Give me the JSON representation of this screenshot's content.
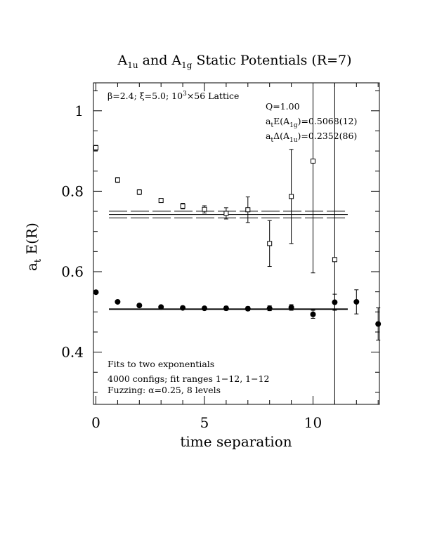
{
  "chart_data": {
    "type": "scatter",
    "title": {
      "a_text": "A",
      "sub1": "1u",
      "and_text": " and A",
      "sub2": "1g",
      "rest": " Static Potentials (R=7)"
    },
    "xlabel": "time separation",
    "ylabel": {
      "a": "a",
      "sub": "t",
      "rest": " E(R)"
    },
    "xlim": [
      0,
      13
    ],
    "ylim": [
      0.27,
      1.07
    ],
    "x_ticks": [
      0,
      5,
      10
    ],
    "x_tick_labels": [
      "0",
      "5",
      "10"
    ],
    "y_ticks": [
      0.4,
      0.6,
      0.8,
      1.0
    ],
    "y_tick_labels": [
      "0.4",
      "0.6",
      "0.8",
      "1"
    ],
    "annotations": {
      "lattice": {
        "beta": "β=2.4; ξ=5.0; 10",
        "exp": "3",
        "rest": "×56 Lattice"
      },
      "q": "Q=1.00",
      "energy_g": {
        "a": "a",
        "sub1": "t",
        "mid": "E(A",
        "sub2": "1g",
        "rest": ")=0.5068(12)"
      },
      "energy_u": {
        "a": "a",
        "sub1": "t",
        "mid": "Δ(A",
        "sub2": "1u",
        "rest": ")=0.2352(86)"
      },
      "fit_note_1": "Fits to two exponentials",
      "fit_note_2": "4000 configs; fit ranges 1−12, 1−12",
      "fit_note_3": "Fuzzing: α=0.25, 8 levels"
    },
    "series": [
      {
        "name": "A1g",
        "marker": "filled-circle",
        "points": [
          {
            "x": 0,
            "y": 0.549,
            "err": 0.003
          },
          {
            "x": 1,
            "y": 0.525,
            "err": 0.003
          },
          {
            "x": 2,
            "y": 0.516,
            "err": 0.004
          },
          {
            "x": 3,
            "y": 0.512,
            "err": 0.004
          },
          {
            "x": 4,
            "y": 0.51,
            "err": 0.004
          },
          {
            "x": 5,
            "y": 0.509,
            "err": 0.004
          },
          {
            "x": 6,
            "y": 0.509,
            "err": 0.005
          },
          {
            "x": 7,
            "y": 0.508,
            "err": 0.005
          },
          {
            "x": 8,
            "y": 0.509,
            "err": 0.006
          },
          {
            "x": 9,
            "y": 0.511,
            "err": 0.007
          },
          {
            "x": 10,
            "y": 0.494,
            "err": 0.01
          },
          {
            "x": 11,
            "y": 0.524,
            "err": 0.02
          },
          {
            "x": 12,
            "y": 0.525,
            "err": 0.03
          },
          {
            "x": 13,
            "y": 0.47,
            "err": 0.04
          }
        ],
        "fit": {
          "value": 0.5068,
          "x_range": [
            0.6,
            11.6
          ]
        }
      },
      {
        "name": "A1u",
        "marker": "open-square",
        "points": [
          {
            "x": 0,
            "y": 0.908,
            "err": 0.006
          },
          {
            "x": 1,
            "y": 0.828,
            "err": 0.006
          },
          {
            "x": 2,
            "y": 0.798,
            "err": 0.006
          },
          {
            "x": 3,
            "y": 0.777,
            "err": 0.005
          },
          {
            "x": 4,
            "y": 0.763,
            "err": 0.007
          },
          {
            "x": 5,
            "y": 0.755,
            "err": 0.009
          },
          {
            "x": 6,
            "y": 0.745,
            "err": 0.014
          },
          {
            "x": 7,
            "y": 0.754,
            "err": 0.032
          },
          {
            "x": 8,
            "y": 0.67,
            "err": 0.057
          },
          {
            "x": 9,
            "y": 0.787,
            "err": 0.117
          },
          {
            "x": 10,
            "y": 0.875,
            "err": 0.278
          },
          {
            "x": 11,
            "y": 0.63,
            "err": 0.6
          }
        ],
        "fit": {
          "value": 0.742,
          "band": [
            0.7338,
            0.7502
          ],
          "x_range": [
            0.6,
            11.6
          ]
        }
      }
    ]
  }
}
